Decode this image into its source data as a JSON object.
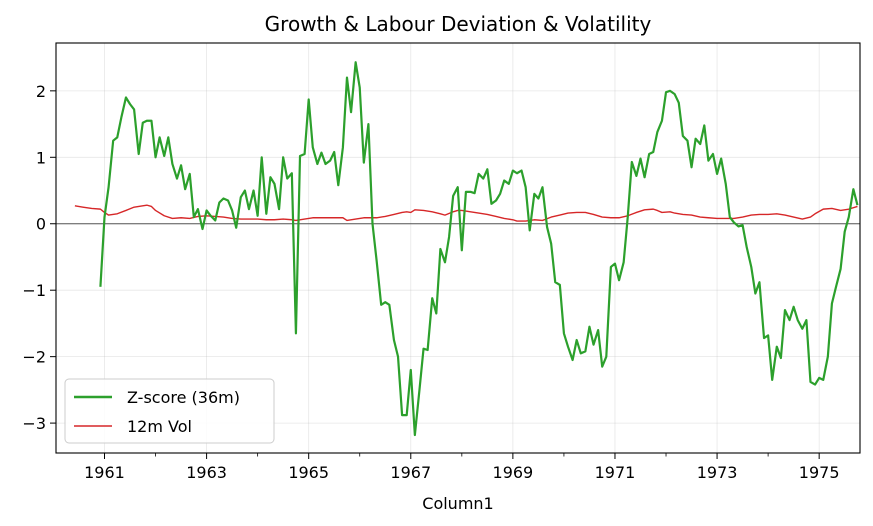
{
  "chart_data": {
    "type": "line",
    "title": "Growth & Labour Deviation & Volatility",
    "xlabel": "Column1",
    "ylabel": "",
    "xlim": [
      1960.05,
      1975.8
    ],
    "ylim": [
      -3.45,
      2.72
    ],
    "x_ticks": [
      1961,
      1963,
      1965,
      1967,
      1969,
      1971,
      1973,
      1975
    ],
    "x_tick_labels": [
      "1961",
      "1963",
      "1965",
      "1967",
      "1969",
      "1971",
      "1973",
      "1975"
    ],
    "y_ticks": [
      -3,
      -2,
      -1,
      0,
      1,
      2
    ],
    "y_tick_labels": [
      "−3",
      "−2",
      "−1",
      "0",
      "1",
      "2"
    ],
    "grid": true,
    "zero_line": 0,
    "legend_position": "lower left",
    "series": [
      {
        "name": "Z-score (36m)",
        "color": "#2ca02c",
        "points": [
          [
            1960.92,
            -0.95
          ],
          [
            1961.0,
            0.1
          ],
          [
            1961.08,
            0.55
          ],
          [
            1961.17,
            1.25
          ],
          [
            1961.25,
            1.3
          ],
          [
            1961.33,
            1.6
          ],
          [
            1961.42,
            1.9
          ],
          [
            1961.5,
            1.8
          ],
          [
            1961.58,
            1.72
          ],
          [
            1961.67,
            1.05
          ],
          [
            1961.75,
            1.52
          ],
          [
            1961.83,
            1.55
          ],
          [
            1961.92,
            1.55
          ],
          [
            1962.0,
            1.0
          ],
          [
            1962.08,
            1.3
          ],
          [
            1962.17,
            1.02
          ],
          [
            1962.25,
            1.3
          ],
          [
            1962.33,
            0.9
          ],
          [
            1962.42,
            0.68
          ],
          [
            1962.5,
            0.88
          ],
          [
            1962.58,
            0.52
          ],
          [
            1962.67,
            0.75
          ],
          [
            1962.75,
            0.1
          ],
          [
            1962.83,
            0.22
          ],
          [
            1962.92,
            -0.08
          ],
          [
            1963.0,
            0.2
          ],
          [
            1963.08,
            0.12
          ],
          [
            1963.17,
            0.05
          ],
          [
            1963.25,
            0.32
          ],
          [
            1963.33,
            0.38
          ],
          [
            1963.42,
            0.35
          ],
          [
            1963.5,
            0.2
          ],
          [
            1963.58,
            -0.06
          ],
          [
            1963.67,
            0.4
          ],
          [
            1963.75,
            0.5
          ],
          [
            1963.83,
            0.22
          ],
          [
            1963.92,
            0.5
          ],
          [
            1964.0,
            0.12
          ],
          [
            1964.08,
            1.0
          ],
          [
            1964.17,
            0.15
          ],
          [
            1964.25,
            0.7
          ],
          [
            1964.33,
            0.6
          ],
          [
            1964.42,
            0.22
          ],
          [
            1964.5,
            1.0
          ],
          [
            1964.58,
            0.68
          ],
          [
            1964.67,
            0.76
          ],
          [
            1964.75,
            -1.65
          ],
          [
            1964.83,
            1.02
          ],
          [
            1964.92,
            1.05
          ],
          [
            1965.0,
            1.87
          ],
          [
            1965.08,
            1.15
          ],
          [
            1965.17,
            0.9
          ],
          [
            1965.25,
            1.07
          ],
          [
            1965.33,
            0.9
          ],
          [
            1965.42,
            0.95
          ],
          [
            1965.5,
            1.08
          ],
          [
            1965.58,
            0.58
          ],
          [
            1965.67,
            1.15
          ],
          [
            1965.75,
            2.2
          ],
          [
            1965.83,
            1.68
          ],
          [
            1965.92,
            2.43
          ],
          [
            1966.0,
            2.05
          ],
          [
            1966.08,
            0.92
          ],
          [
            1966.17,
            1.5
          ],
          [
            1966.25,
            0.0
          ],
          [
            1966.33,
            -0.55
          ],
          [
            1966.42,
            -1.22
          ],
          [
            1966.5,
            -1.18
          ],
          [
            1966.58,
            -1.22
          ],
          [
            1966.67,
            -1.75
          ],
          [
            1966.75,
            -2.0
          ],
          [
            1966.83,
            -2.88
          ],
          [
            1966.92,
            -2.88
          ],
          [
            1967.0,
            -2.2
          ],
          [
            1967.08,
            -3.18
          ],
          [
            1967.17,
            -2.5
          ],
          [
            1967.25,
            -1.88
          ],
          [
            1967.33,
            -1.9
          ],
          [
            1967.42,
            -1.12
          ],
          [
            1967.5,
            -1.35
          ],
          [
            1967.58,
            -0.38
          ],
          [
            1967.67,
            -0.58
          ],
          [
            1967.75,
            -0.2
          ],
          [
            1967.83,
            0.42
          ],
          [
            1967.92,
            0.55
          ],
          [
            1968.0,
            -0.4
          ],
          [
            1968.08,
            0.48
          ],
          [
            1968.17,
            0.48
          ],
          [
            1968.25,
            0.46
          ],
          [
            1968.33,
            0.75
          ],
          [
            1968.42,
            0.68
          ],
          [
            1968.5,
            0.82
          ],
          [
            1968.58,
            0.3
          ],
          [
            1968.67,
            0.35
          ],
          [
            1968.75,
            0.45
          ],
          [
            1968.83,
            0.65
          ],
          [
            1968.92,
            0.6
          ],
          [
            1969.0,
            0.8
          ],
          [
            1969.08,
            0.76
          ],
          [
            1969.17,
            0.8
          ],
          [
            1969.25,
            0.55
          ],
          [
            1969.33,
            -0.1
          ],
          [
            1969.42,
            0.45
          ],
          [
            1969.5,
            0.38
          ],
          [
            1969.58,
            0.55
          ],
          [
            1969.67,
            -0.05
          ],
          [
            1969.75,
            -0.3
          ],
          [
            1969.83,
            -0.88
          ],
          [
            1969.92,
            -0.92
          ],
          [
            1970.0,
            -1.65
          ],
          [
            1970.08,
            -1.85
          ],
          [
            1970.17,
            -2.05
          ],
          [
            1970.25,
            -1.75
          ],
          [
            1970.33,
            -1.95
          ],
          [
            1970.42,
            -1.92
          ],
          [
            1970.5,
            -1.55
          ],
          [
            1970.58,
            -1.82
          ],
          [
            1970.67,
            -1.6
          ],
          [
            1970.75,
            -2.15
          ],
          [
            1970.83,
            -2.0
          ],
          [
            1970.92,
            -0.65
          ],
          [
            1971.0,
            -0.6
          ],
          [
            1971.08,
            -0.85
          ],
          [
            1971.17,
            -0.58
          ],
          [
            1971.25,
            0.1
          ],
          [
            1971.33,
            0.93
          ],
          [
            1971.42,
            0.72
          ],
          [
            1971.5,
            0.98
          ],
          [
            1971.58,
            0.7
          ],
          [
            1971.67,
            1.05
          ],
          [
            1971.75,
            1.08
          ],
          [
            1971.83,
            1.38
          ],
          [
            1971.92,
            1.55
          ],
          [
            1972.0,
            1.98
          ],
          [
            1972.08,
            2.0
          ],
          [
            1972.17,
            1.95
          ],
          [
            1972.25,
            1.82
          ],
          [
            1972.33,
            1.32
          ],
          [
            1972.42,
            1.25
          ],
          [
            1972.5,
            0.85
          ],
          [
            1972.58,
            1.28
          ],
          [
            1972.67,
            1.2
          ],
          [
            1972.75,
            1.48
          ],
          [
            1972.83,
            0.95
          ],
          [
            1972.92,
            1.05
          ],
          [
            1973.0,
            0.75
          ],
          [
            1973.08,
            0.98
          ],
          [
            1973.17,
            0.6
          ],
          [
            1973.25,
            0.1
          ],
          [
            1973.33,
            0.02
          ],
          [
            1973.42,
            -0.04
          ],
          [
            1973.5,
            -0.02
          ],
          [
            1973.58,
            -0.35
          ],
          [
            1973.67,
            -0.65
          ],
          [
            1973.75,
            -1.05
          ],
          [
            1973.83,
            -0.88
          ],
          [
            1973.92,
            -1.72
          ],
          [
            1974.0,
            -1.68
          ],
          [
            1974.08,
            -2.35
          ],
          [
            1974.17,
            -1.85
          ],
          [
            1974.25,
            -2.02
          ],
          [
            1974.33,
            -1.3
          ],
          [
            1974.42,
            -1.45
          ],
          [
            1974.5,
            -1.25
          ],
          [
            1974.58,
            -1.45
          ],
          [
            1974.67,
            -1.58
          ],
          [
            1974.75,
            -1.45
          ],
          [
            1974.83,
            -2.38
          ],
          [
            1974.92,
            -2.42
          ],
          [
            1975.0,
            -2.32
          ],
          [
            1975.08,
            -2.35
          ],
          [
            1975.17,
            -2.0
          ],
          [
            1975.25,
            -1.2
          ],
          [
            1975.33,
            -0.95
          ],
          [
            1975.42,
            -0.68
          ],
          [
            1975.5,
            -0.12
          ],
          [
            1975.58,
            0.1
          ],
          [
            1975.67,
            0.52
          ],
          [
            1975.75,
            0.28
          ]
        ]
      },
      {
        "name": "12m Vol",
        "color": "#d62728",
        "points": [
          [
            1960.42,
            0.27
          ],
          [
            1960.58,
            0.25
          ],
          [
            1960.75,
            0.23
          ],
          [
            1960.92,
            0.22
          ],
          [
            1961.0,
            0.17
          ],
          [
            1961.08,
            0.13
          ],
          [
            1961.25,
            0.15
          ],
          [
            1961.42,
            0.2
          ],
          [
            1961.58,
            0.25
          ],
          [
            1961.75,
            0.27
          ],
          [
            1961.83,
            0.28
          ],
          [
            1961.92,
            0.26
          ],
          [
            1962.0,
            0.2
          ],
          [
            1962.17,
            0.12
          ],
          [
            1962.33,
            0.08
          ],
          [
            1962.5,
            0.09
          ],
          [
            1962.67,
            0.08
          ],
          [
            1962.83,
            0.11
          ],
          [
            1963.0,
            0.12
          ],
          [
            1963.17,
            0.11
          ],
          [
            1963.33,
            0.1
          ],
          [
            1963.5,
            0.08
          ],
          [
            1963.67,
            0.07
          ],
          [
            1963.83,
            0.07
          ],
          [
            1964.0,
            0.07
          ],
          [
            1964.17,
            0.06
          ],
          [
            1964.33,
            0.06
          ],
          [
            1964.5,
            0.07
          ],
          [
            1964.67,
            0.06
          ],
          [
            1964.75,
            0.05
          ],
          [
            1964.92,
            0.07
          ],
          [
            1965.08,
            0.09
          ],
          [
            1965.33,
            0.09
          ],
          [
            1965.67,
            0.09
          ],
          [
            1965.75,
            0.05
          ],
          [
            1965.92,
            0.07
          ],
          [
            1966.08,
            0.09
          ],
          [
            1966.33,
            0.09
          ],
          [
            1966.5,
            0.11
          ],
          [
            1966.67,
            0.14
          ],
          [
            1966.83,
            0.17
          ],
          [
            1966.92,
            0.18
          ],
          [
            1967.0,
            0.17
          ],
          [
            1967.08,
            0.21
          ],
          [
            1967.25,
            0.2
          ],
          [
            1967.42,
            0.18
          ],
          [
            1967.58,
            0.15
          ],
          [
            1967.67,
            0.13
          ],
          [
            1967.83,
            0.18
          ],
          [
            1967.92,
            0.2
          ],
          [
            1968.0,
            0.2
          ],
          [
            1968.17,
            0.18
          ],
          [
            1968.33,
            0.16
          ],
          [
            1968.5,
            0.14
          ],
          [
            1968.67,
            0.11
          ],
          [
            1968.83,
            0.08
          ],
          [
            1969.0,
            0.06
          ],
          [
            1969.08,
            0.04
          ],
          [
            1969.25,
            0.04
          ],
          [
            1969.42,
            0.06
          ],
          [
            1969.58,
            0.05
          ],
          [
            1969.75,
            0.1
          ],
          [
            1969.92,
            0.13
          ],
          [
            1970.08,
            0.16
          ],
          [
            1970.25,
            0.17
          ],
          [
            1970.42,
            0.17
          ],
          [
            1970.58,
            0.14
          ],
          [
            1970.75,
            0.1
          ],
          [
            1970.92,
            0.09
          ],
          [
            1971.08,
            0.09
          ],
          [
            1971.25,
            0.12
          ],
          [
            1971.42,
            0.17
          ],
          [
            1971.58,
            0.21
          ],
          [
            1971.75,
            0.22
          ],
          [
            1971.83,
            0.2
          ],
          [
            1971.92,
            0.17
          ],
          [
            1972.08,
            0.18
          ],
          [
            1972.17,
            0.16
          ],
          [
            1972.33,
            0.14
          ],
          [
            1972.5,
            0.13
          ],
          [
            1972.67,
            0.1
          ],
          [
            1972.83,
            0.09
          ],
          [
            1973.0,
            0.08
          ],
          [
            1973.17,
            0.08
          ],
          [
            1973.33,
            0.08
          ],
          [
            1973.5,
            0.1
          ],
          [
            1973.67,
            0.13
          ],
          [
            1973.83,
            0.14
          ],
          [
            1974.0,
            0.14
          ],
          [
            1974.17,
            0.15
          ],
          [
            1974.33,
            0.13
          ],
          [
            1974.5,
            0.1
          ],
          [
            1974.67,
            0.07
          ],
          [
            1974.83,
            0.1
          ],
          [
            1974.92,
            0.15
          ],
          [
            1975.08,
            0.22
          ],
          [
            1975.25,
            0.23
          ],
          [
            1975.42,
            0.2
          ],
          [
            1975.58,
            0.22
          ],
          [
            1975.75,
            0.26
          ]
        ]
      }
    ]
  }
}
